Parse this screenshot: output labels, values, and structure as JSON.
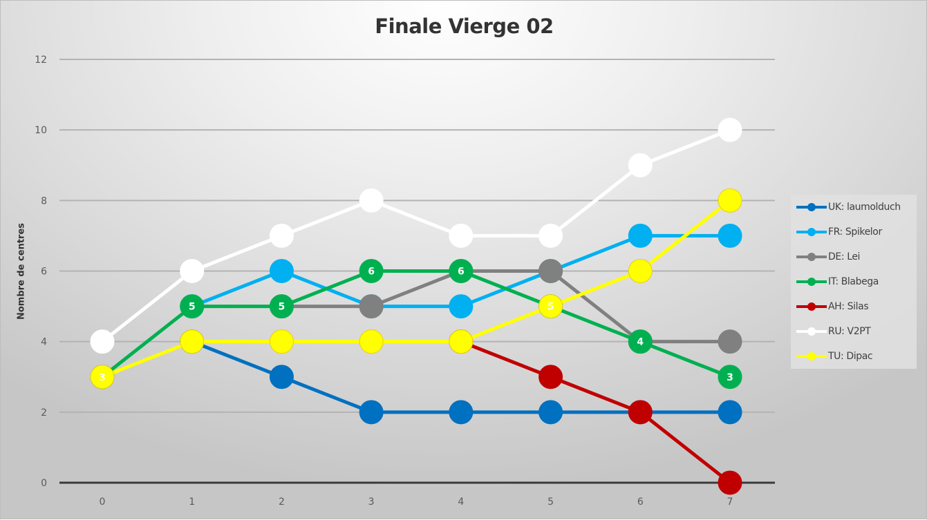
{
  "chart_data": {
    "type": "line",
    "title": "Finale Vierge 02",
    "xlabel": "",
    "ylabel": "Nombre de centres",
    "x": [
      0,
      1,
      2,
      3,
      4,
      5,
      6,
      7
    ],
    "x_tick_labels": [
      "0",
      "1",
      "2",
      "3",
      "4",
      "5",
      "6",
      "7"
    ],
    "y_tick_labels": [
      "0",
      "2",
      "4",
      "6",
      "8",
      "10",
      "12"
    ],
    "ylim": [
      0,
      12
    ],
    "grid": true,
    "legend_position": "right",
    "series": [
      {
        "name": "UK: laumolduch",
        "color": "#0070c0",
        "values": [
          null,
          4,
          3,
          2,
          2,
          2,
          2,
          2
        ],
        "data_labels": false
      },
      {
        "name": "FR: Spikelor",
        "color": "#00b0f0",
        "values": [
          null,
          5,
          6,
          5,
          5,
          6,
          7,
          7
        ],
        "data_labels": false
      },
      {
        "name": "DE: Lei",
        "color": "#808080",
        "values": [
          null,
          null,
          5,
          5,
          6,
          6,
          4,
          4
        ],
        "data_labels": false
      },
      {
        "name": "IT: Blabega",
        "color": "#00b050",
        "values": [
          3,
          5,
          5,
          6,
          6,
          5,
          4,
          3
        ],
        "data_labels": true,
        "label_points": [
          1,
          2,
          3,
          4,
          6,
          7
        ]
      },
      {
        "name": "AH: Silas",
        "color": "#c00000",
        "values": [
          null,
          null,
          null,
          null,
          4,
          3,
          2,
          0
        ],
        "data_labels": false
      },
      {
        "name": "RU: V2PT",
        "color": "#ffffff",
        "values": [
          4,
          6,
          7,
          8,
          7,
          7,
          9,
          10
        ],
        "data_labels": false
      },
      {
        "name": "TU: Dipac",
        "color": "#ffff00",
        "values": [
          3,
          4,
          4,
          4,
          4,
          5,
          6,
          8
        ],
        "data_labels": true,
        "label_points": [
          0,
          5
        ]
      }
    ]
  }
}
